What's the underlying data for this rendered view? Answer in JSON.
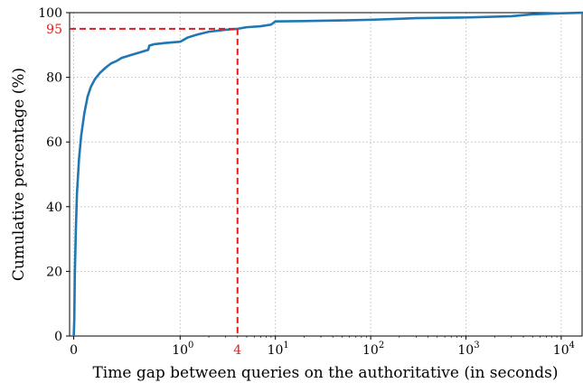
{
  "chart_data": {
    "type": "line",
    "title": "",
    "xlabel": "Time gap between queries on the authoritative (in seconds)",
    "ylabel": "Cumulative percentage (%)",
    "x_scale": "symlog (linear 0 to 1, logarithmic above 1)",
    "xlim": [
      0,
      18000
    ],
    "ylim": [
      0,
      100
    ],
    "grid": true,
    "x_ticks": [
      {
        "value": 0,
        "label": "0",
        "exp": ""
      },
      {
        "value": 1,
        "label": "10",
        "exp": "0"
      },
      {
        "value": 10,
        "label": "10",
        "exp": "1"
      },
      {
        "value": 100,
        "label": "10",
        "exp": "2"
      },
      {
        "value": 1000,
        "label": "10",
        "exp": "3"
      },
      {
        "value": 10000,
        "label": "10",
        "exp": "4"
      }
    ],
    "y_ticks": [
      {
        "value": 0,
        "label": "0"
      },
      {
        "value": 20,
        "label": "20"
      },
      {
        "value": 40,
        "label": "40"
      },
      {
        "value": 60,
        "label": "60"
      },
      {
        "value": 80,
        "label": "80"
      },
      {
        "value": 100,
        "label": "100"
      }
    ],
    "series": [
      {
        "color": "#1f77b4",
        "points": [
          [
            0,
            0
          ],
          [
            0.005,
            5
          ],
          [
            0.01,
            19
          ],
          [
            0.02,
            33
          ],
          [
            0.03,
            44
          ],
          [
            0.05,
            55
          ],
          [
            0.07,
            62
          ],
          [
            0.1,
            69
          ],
          [
            0.13,
            74
          ],
          [
            0.16,
            77
          ],
          [
            0.2,
            79.5
          ],
          [
            0.25,
            81.5
          ],
          [
            0.3,
            83
          ],
          [
            0.35,
            84.3
          ],
          [
            0.4,
            85
          ],
          [
            0.45,
            86
          ],
          [
            0.55,
            87
          ],
          [
            0.65,
            88
          ],
          [
            0.7,
            88.5
          ],
          [
            0.71,
            89.8
          ],
          [
            0.75,
            90.2
          ],
          [
            0.85,
            90.6
          ],
          [
            1.0,
            91.0
          ],
          [
            1.2,
            92.3
          ],
          [
            1.5,
            93.2
          ],
          [
            2,
            94.1
          ],
          [
            3,
            94.7
          ],
          [
            4,
            95.0
          ],
          [
            5,
            95.5
          ],
          [
            7,
            95.8
          ],
          [
            9,
            96.3
          ],
          [
            10,
            97.3
          ],
          [
            20,
            97.4
          ],
          [
            50,
            97.6
          ],
          [
            100,
            97.8
          ],
          [
            200,
            98.1
          ],
          [
            300,
            98.3
          ],
          [
            1000,
            98.5
          ],
          [
            3000,
            98.9
          ],
          [
            5000,
            99.5
          ],
          [
            10000,
            99.8
          ],
          [
            18000,
            100
          ]
        ]
      }
    ],
    "annotation": {
      "x": 4,
      "y": 95,
      "x_label": "4",
      "y_label": "95",
      "color": "#e41a1c",
      "style": "dashed"
    }
  }
}
